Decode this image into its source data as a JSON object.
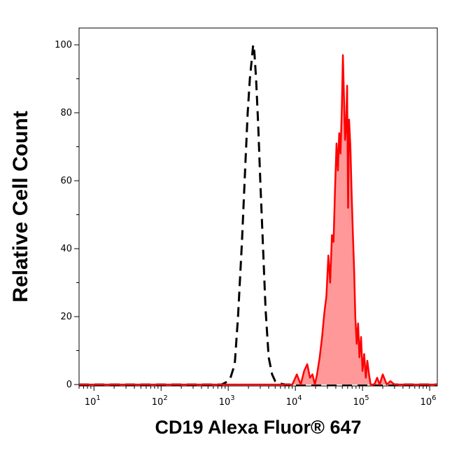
{
  "chart_data": {
    "type": "area",
    "title": "",
    "xlabel": "CD19 Alexa Fluor® 647",
    "ylabel": "Relative Cell Count",
    "xscale": "log",
    "xlim": [
      6,
      1300000
    ],
    "ylim": [
      0,
      100
    ],
    "grid": false,
    "legend": "none",
    "x_ticks": [
      {
        "value": 10,
        "base": "10",
        "exp": "1"
      },
      {
        "value": 100,
        "base": "10",
        "exp": "2"
      },
      {
        "value": 1000,
        "base": "10",
        "exp": "3"
      },
      {
        "value": 10000,
        "base": "10",
        "exp": "4"
      },
      {
        "value": 100000,
        "base": "10",
        "exp": "5"
      },
      {
        "value": 1000000,
        "base": "10",
        "exp": "6"
      }
    ],
    "y_ticks": [
      0,
      20,
      40,
      60,
      80,
      100
    ],
    "series": [
      {
        "style": "dashed",
        "color": "#000000",
        "fill": "none",
        "x": [
          6,
          500,
          800,
          950,
          1080,
          1250,
          1400,
          1600,
          1800,
          1950,
          2100,
          2250,
          2350,
          2450,
          2600,
          2800,
          3000,
          3300,
          3600,
          4000,
          4500,
          5000,
          5600,
          7000,
          10000,
          1300000
        ],
        "y": [
          0,
          0,
          0,
          0.8,
          2,
          6,
          20,
          42,
          65,
          80,
          90,
          96,
          100,
          98,
          90,
          76,
          60,
          40,
          22,
          8,
          3,
          1,
          0.4,
          0,
          0,
          0
        ]
      },
      {
        "style": "solid",
        "color": "#ff0000",
        "fill": "#ff9999",
        "x": [
          6,
          9000,
          10500,
          12000,
          13500,
          15000,
          16500,
          18000,
          19500,
          21000,
          23000,
          25000,
          27000,
          29000,
          31000,
          33000,
          35000,
          37000,
          39000,
          41000,
          43000,
          45000,
          47000,
          49000,
          51000,
          53000,
          55000,
          57000,
          59000,
          61000,
          63000,
          66000,
          69000,
          72000,
          75000,
          78000,
          82000,
          86000,
          90000,
          95000,
          100000,
          106000,
          112000,
          118000,
          125000,
          132000,
          140000,
          150000,
          165000,
          180000,
          200000,
          230000,
          260000,
          300000,
          1300000
        ],
        "y": [
          0,
          0,
          3,
          0,
          4,
          6,
          2,
          3,
          0,
          3,
          8,
          14,
          21,
          26,
          38,
          30,
          44,
          42,
          58,
          71,
          63,
          74,
          68,
          80,
          97,
          84,
          72,
          76,
          88,
          52,
          78,
          70,
          56,
          44,
          34,
          20,
          12,
          18,
          8,
          14,
          4,
          9,
          2,
          7,
          3,
          0,
          0,
          0,
          2,
          0,
          3,
          0,
          1,
          0,
          0
        ]
      }
    ]
  }
}
